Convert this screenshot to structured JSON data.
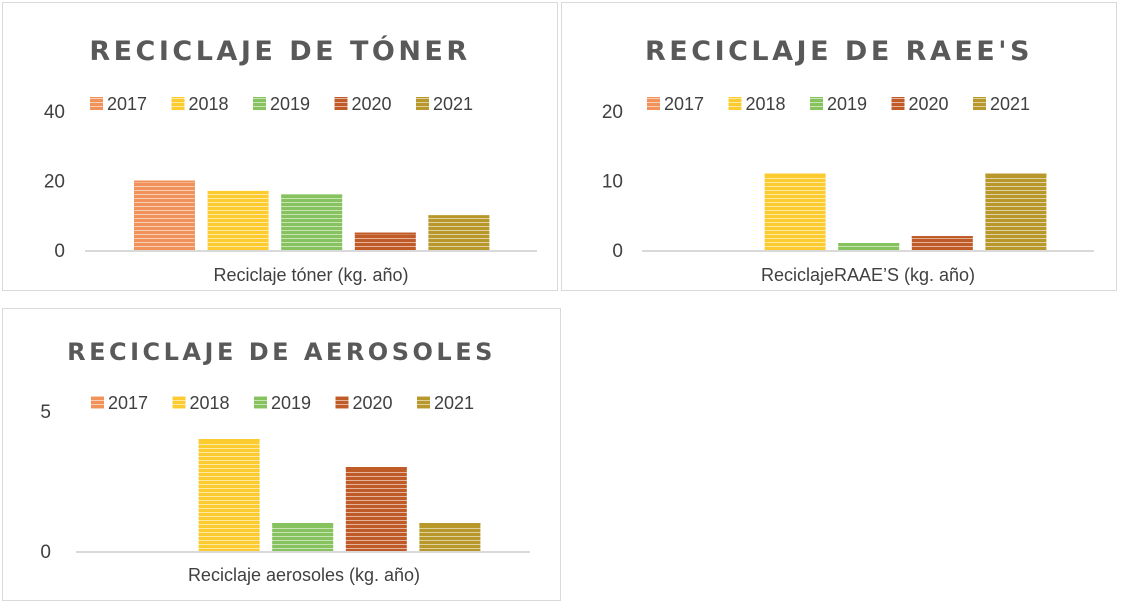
{
  "chart_data": [
    {
      "type": "bar",
      "title": "RECICLAJE DE TÓNER",
      "xlabel": "Reciclaje tóner (kg. año)",
      "ylabel": "",
      "categories": [
        "Reciclaje tóner (kg. año)"
      ],
      "series": [
        {
          "name": "2017",
          "values": [
            20
          ]
        },
        {
          "name": "2018",
          "values": [
            17
          ]
        },
        {
          "name": "2019",
          "values": [
            16
          ]
        },
        {
          "name": "2020",
          "values": [
            5
          ]
        },
        {
          "name": "2021",
          "values": [
            10
          ]
        }
      ],
      "ylim": [
        0,
        40
      ],
      "yticks": [
        "0",
        "20",
        "40"
      ],
      "legend": "top",
      "grid": false
    },
    {
      "type": "bar",
      "title": "RECICLAJE DE RAEE'S",
      "xlabel": "ReciclajeRAAE’S (kg. año)",
      "ylabel": "",
      "categories": [
        "ReciclajeRAAE’S (kg. año)"
      ],
      "series": [
        {
          "name": "2017",
          "values": [
            0
          ]
        },
        {
          "name": "2018",
          "values": [
            11
          ]
        },
        {
          "name": "2019",
          "values": [
            1
          ]
        },
        {
          "name": "2020",
          "values": [
            2
          ]
        },
        {
          "name": "2021",
          "values": [
            11
          ]
        }
      ],
      "ylim": [
        0,
        20
      ],
      "yticks": [
        "0",
        "10",
        "20"
      ],
      "legend": "top",
      "grid": false
    },
    {
      "type": "bar",
      "title": "RECICLAJE DE AEROSOLES",
      "xlabel": "Reciclaje aerosoles (kg. año)",
      "ylabel": "",
      "categories": [
        "Reciclaje aerosoles (kg. año)"
      ],
      "series": [
        {
          "name": "2017",
          "values": [
            0
          ]
        },
        {
          "name": "2018",
          "values": [
            4
          ]
        },
        {
          "name": "2019",
          "values": [
            1
          ]
        },
        {
          "name": "2020",
          "values": [
            3
          ]
        },
        {
          "name": "2021",
          "values": [
            1
          ]
        }
      ],
      "ylim": [
        0,
        5
      ],
      "yticks": [
        "0",
        "5"
      ],
      "legend": "top",
      "grid": false
    }
  ],
  "colors": {
    "2017": "#f0925a",
    "2018": "#fbcb2f",
    "2019": "#86c25d",
    "2020": "#c05a27",
    "2021": "#b8982a",
    "axis": "#d9d9d9",
    "text": "#404040",
    "title": "#595959"
  }
}
